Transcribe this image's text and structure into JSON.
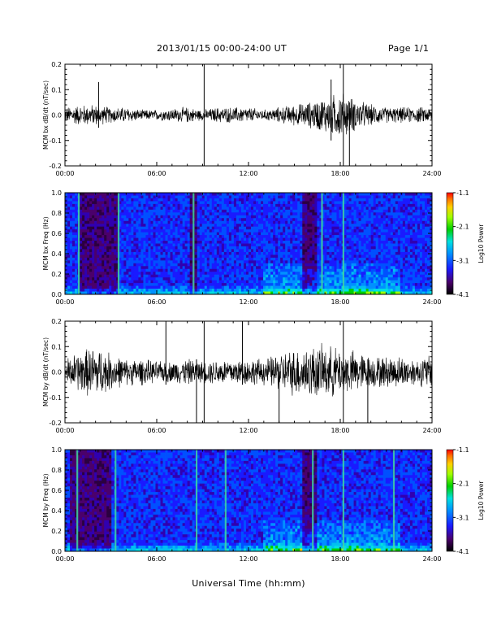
{
  "header": {
    "title": "2013/01/15  00:00-24:00 UT",
    "page": "Page 1/1"
  },
  "xlabel": "Universal Time (hh:mm)",
  "chart_data": [
    {
      "type": "line",
      "ylabel": "MCM bx dB/dt (nT/sec)",
      "xlim": [
        0,
        24
      ],
      "ylim": [
        -0.2,
        0.2
      ],
      "x_ticks": [
        "00:00",
        "06:00",
        "12:00",
        "18:00",
        "24:00"
      ],
      "y_ticks": [
        "0.2",
        "0.1",
        "0.0",
        "-0.1",
        "-0.2"
      ],
      "envelope": {
        "x": [
          0,
          1,
          2,
          3,
          4,
          5,
          6,
          7,
          8,
          9,
          10,
          11,
          12,
          13,
          14,
          15,
          16,
          17,
          18,
          19,
          20,
          21,
          22,
          23,
          24
        ],
        "amplitude": [
          0.03,
          0.04,
          0.04,
          0.03,
          0.03,
          0.02,
          0.02,
          0.025,
          0.03,
          0.02,
          0.03,
          0.03,
          0.03,
          0.02,
          0.03,
          0.04,
          0.05,
          0.07,
          0.09,
          0.06,
          0.04,
          0.03,
          0.03,
          0.03,
          0.03
        ]
      },
      "spikes": [
        {
          "x": 9.1,
          "low": -0.2,
          "high": 0.2
        },
        {
          "x": 18.2,
          "low": -0.2,
          "high": 0.2
        },
        {
          "x": 18.6,
          "low": -0.2,
          "high": 0.05
        },
        {
          "x": 2.2,
          "low": -0.05,
          "high": 0.13
        },
        {
          "x": 17.4,
          "low": -0.1,
          "high": 0.14
        }
      ]
    },
    {
      "type": "heatmap",
      "ylabel": "MCM bx Freq (Hz)",
      "xlim": [
        0,
        24
      ],
      "ylim": [
        0.0,
        1.0
      ],
      "x_ticks": [
        "00:00",
        "06:00",
        "12:00",
        "18:00",
        "24:00"
      ],
      "y_ticks": [
        "1.0",
        "0.8",
        "0.6",
        "0.4",
        "0.2",
        "0.0"
      ],
      "colorbar": {
        "label": "Log10 Power",
        "range": [
          -4.1,
          -1.1
        ],
        "ticks": [
          "-1.1",
          "-2.1",
          "-3.1",
          "-4.1"
        ]
      },
      "dark_intervals": [
        [
          1.0,
          3.5
        ],
        [
          8.2,
          8.6
        ],
        [
          15.5,
          16.4
        ]
      ],
      "bright_lines": [
        0.9,
        3.5,
        8.4,
        16.8,
        18.2
      ]
    },
    {
      "type": "line",
      "ylabel": "MCM by dB/dt (nT/sec)",
      "xlim": [
        0,
        24
      ],
      "ylim": [
        -0.2,
        0.2
      ],
      "x_ticks": [
        "00:00",
        "06:00",
        "12:00",
        "18:00",
        "24:00"
      ],
      "y_ticks": [
        "0.2",
        "0.1",
        "0.0",
        "-0.1",
        "-0.2"
      ],
      "envelope": {
        "x": [
          0,
          1,
          2,
          3,
          4,
          5,
          6,
          7,
          8,
          9,
          10,
          11,
          12,
          13,
          14,
          15,
          16,
          17,
          18,
          19,
          20,
          21,
          22,
          23,
          24
        ],
        "amplitude": [
          0.05,
          0.08,
          0.1,
          0.07,
          0.05,
          0.05,
          0.04,
          0.04,
          0.05,
          0.04,
          0.05,
          0.05,
          0.05,
          0.05,
          0.07,
          0.09,
          0.1,
          0.1,
          0.09,
          0.08,
          0.06,
          0.06,
          0.06,
          0.05,
          0.07
        ]
      },
      "spikes": [
        {
          "x": 8.6,
          "low": -0.2,
          "high": 0.05
        },
        {
          "x": 9.1,
          "low": -0.2,
          "high": 0.2
        },
        {
          "x": 11.6,
          "low": -0.05,
          "high": 0.2
        },
        {
          "x": 6.6,
          "low": -0.05,
          "high": 0.2
        },
        {
          "x": 18.2,
          "low": -0.2,
          "high": 0.2
        },
        {
          "x": 19.8,
          "low": -0.2,
          "high": 0.05
        },
        {
          "x": 14.0,
          "low": -0.2,
          "high": 0.03
        }
      ]
    },
    {
      "type": "heatmap",
      "ylabel": "MCM by Freq (Hz)",
      "xlim": [
        0,
        24
      ],
      "ylim": [
        0.0,
        1.0
      ],
      "x_ticks": [
        "00:00",
        "06:00",
        "12:00",
        "18:00",
        "24:00"
      ],
      "y_ticks": [
        "1.0",
        "0.8",
        "0.6",
        "0.4",
        "0.2",
        "0.0"
      ],
      "colorbar": {
        "label": "Log10 Power",
        "range": [
          -4.1,
          -1.1
        ],
        "ticks": [
          "-1.1",
          "-2.1",
          "-3.1",
          "-4.1"
        ]
      },
      "dark_intervals": [
        [
          0.3,
          3.0
        ],
        [
          15.5,
          16.5
        ]
      ],
      "bright_lines": [
        0.8,
        3.3,
        8.6,
        10.5,
        16.2,
        18.2,
        21.5
      ]
    }
  ]
}
